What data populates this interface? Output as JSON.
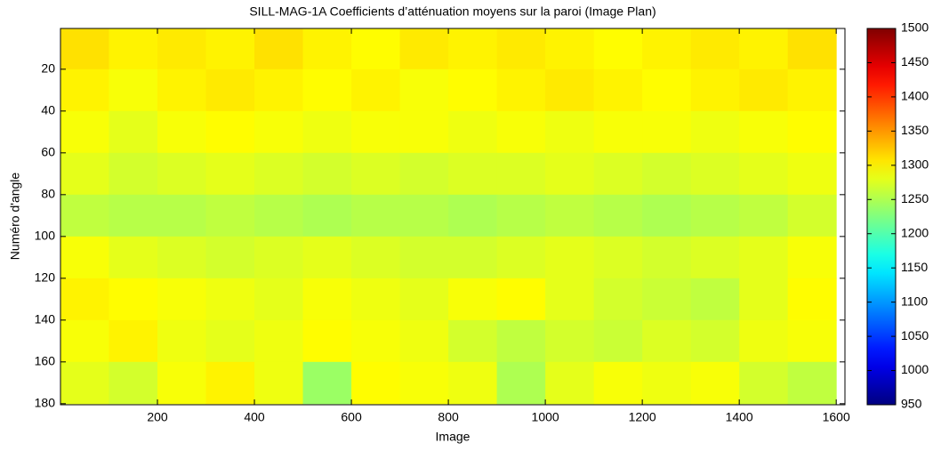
{
  "chart_data": {
    "type": "heatmap",
    "title": "SILL-MAG-1A Coefficients d’atténuation moyens sur la paroi (Image Plan)",
    "xlabel": "Image",
    "ylabel": "Numéro d'angle",
    "x": [
      50,
      150,
      250,
      350,
      450,
      550,
      650,
      750,
      850,
      950,
      1050,
      1150,
      1250,
      1350,
      1450,
      1550
    ],
    "y": [
      10,
      30,
      50,
      70,
      90,
      110,
      130,
      150,
      170
    ],
    "z": [
      [
        1310,
        1300,
        1305,
        1300,
        1310,
        1300,
        1295,
        1305,
        1300,
        1305,
        1300,
        1295,
        1300,
        1305,
        1300,
        1310
      ],
      [
        1300,
        1290,
        1300,
        1305,
        1300,
        1295,
        1300,
        1290,
        1295,
        1300,
        1305,
        1300,
        1295,
        1300,
        1305,
        1300
      ],
      [
        1290,
        1280,
        1290,
        1295,
        1290,
        1285,
        1290,
        1290,
        1285,
        1290,
        1285,
        1290,
        1290,
        1285,
        1290,
        1295
      ],
      [
        1280,
        1270,
        1275,
        1280,
        1275,
        1270,
        1275,
        1270,
        1275,
        1275,
        1280,
        1275,
        1270,
        1275,
        1280,
        1285
      ],
      [
        1260,
        1255,
        1255,
        1260,
        1255,
        1250,
        1255,
        1255,
        1250,
        1255,
        1260,
        1255,
        1250,
        1255,
        1260,
        1270
      ],
      [
        1290,
        1280,
        1275,
        1270,
        1275,
        1280,
        1275,
        1270,
        1270,
        1275,
        1280,
        1275,
        1270,
        1275,
        1280,
        1290
      ],
      [
        1300,
        1295,
        1290,
        1285,
        1280,
        1290,
        1285,
        1280,
        1290,
        1295,
        1280,
        1270,
        1265,
        1260,
        1280,
        1295
      ],
      [
        1290,
        1300,
        1285,
        1280,
        1285,
        1295,
        1290,
        1285,
        1270,
        1260,
        1270,
        1265,
        1275,
        1270,
        1285,
        1290
      ],
      [
        1280,
        1270,
        1290,
        1300,
        1285,
        1240,
        1295,
        1290,
        1285,
        1250,
        1280,
        1290,
        1285,
        1290,
        1270,
        1260
      ]
    ],
    "xlim": [
      0,
      1618
    ],
    "xticks": [
      200,
      400,
      600,
      800,
      1000,
      1200,
      1400,
      1600
    ],
    "ylim": [
      0.5,
      180.5
    ],
    "yticks": [
      20,
      40,
      60,
      80,
      100,
      120,
      140,
      160,
      180
    ],
    "y_reversed": true,
    "colormap": "jet",
    "clim": [
      950,
      1500
    ],
    "cticks": [
      950,
      1000,
      1050,
      1100,
      1150,
      1200,
      1250,
      1300,
      1350,
      1400,
      1450,
      1500
    ]
  }
}
